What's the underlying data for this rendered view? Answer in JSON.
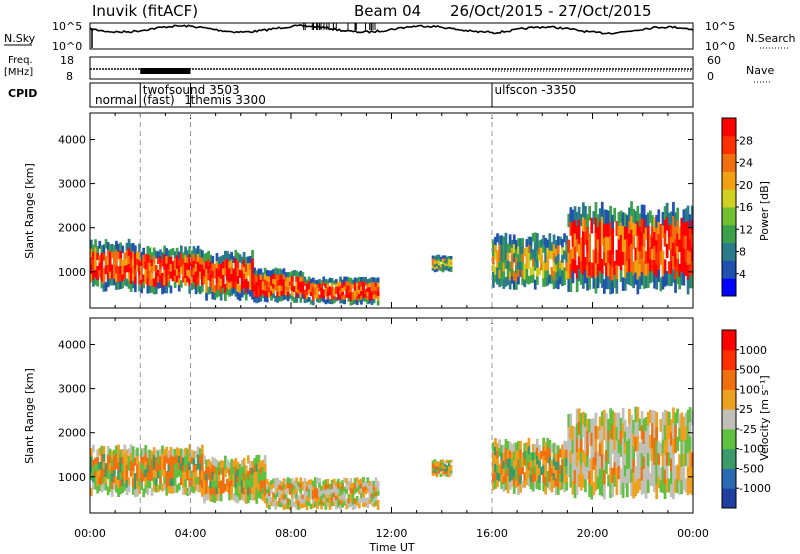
{
  "header": {
    "title": "Inuvik (fitACF)",
    "beam": "Beam 04",
    "dates": "26/Oct/2015 - 27/Oct/2015"
  },
  "top_panels": {
    "nsky_label": "N.Sky",
    "nsearch_label": "N.Search",
    "nsky_ticks": [
      "10^5",
      "10^0"
    ],
    "nsearch_ticks": [
      "10^5",
      "10^0"
    ],
    "freq_label": "Freq.",
    "freq_unit": "[MHz]",
    "freq_ticks": [
      "18",
      "8"
    ],
    "nave_label": "Nave",
    "nave_ticks": [
      "60",
      "0"
    ],
    "cpid_label": "CPID",
    "cpid_modes": [
      {
        "label": "normal",
        "x_hours": 0.2
      },
      {
        "label": "twofsound 3503",
        "x_hours": 2.1,
        "row": 0
      },
      {
        "label": "(fast)",
        "x_hours": 2.1,
        "row": 1
      },
      {
        "label": "1",
        "x_hours": 3.75,
        "row": 1
      },
      {
        "label": "themis 3300",
        "x_hours": 4.0,
        "row": 1
      },
      {
        "label": "ulfscon -3350",
        "x_hours": 16.1,
        "row": 0
      }
    ],
    "mode_change_hours": [
      2.0,
      4.0,
      16.0
    ]
  },
  "colorbars": {
    "power": {
      "label": "Power [dB]",
      "ticks": [
        "28",
        "24",
        "20",
        "16",
        "12",
        "8",
        "4"
      ],
      "colors": [
        "#0000ff",
        "#2050b0",
        "#2a7a8a",
        "#3aa04a",
        "#70c030",
        "#d0d020",
        "#f0a010",
        "#f07010",
        "#ff3000",
        "#ff0000"
      ]
    },
    "velocity": {
      "label": "Velocity [m s⁻¹]",
      "ticks": [
        "1000",
        "500",
        "100",
        "25",
        "-25",
        "-100",
        "-500",
        "-1000"
      ],
      "colors": [
        "#1f3fa0",
        "#2a6ab0",
        "#3a9a6a",
        "#60c040",
        "#c0c0b8",
        "#f0a020",
        "#f07010",
        "#ff3000",
        "#ff0000"
      ]
    }
  },
  "chart_data": [
    {
      "type": "heatmap",
      "name": "power",
      "ylabel": "Slant Range [km]",
      "xlabel": "Time UT",
      "x_ticks": [
        "00:00",
        "04:00",
        "08:00",
        "12:00",
        "16:00",
        "20:00",
        "00:00"
      ],
      "y_ticks": [
        1000,
        2000,
        3000,
        4000
      ],
      "xlim_hours": [
        0,
        24
      ],
      "ylim": [
        180,
        4600
      ],
      "regions": [
        {
          "t0": 0,
          "t1": 2.0,
          "r0": 550,
          "r1": 1750,
          "core": "red"
        },
        {
          "t0": 2.0,
          "t1": 4.5,
          "r0": 500,
          "r1": 1600,
          "core": "red"
        },
        {
          "t0": 4.5,
          "t1": 6.5,
          "r0": 350,
          "r1": 1500,
          "core": "red"
        },
        {
          "t0": 6.5,
          "t1": 8.5,
          "r0": 300,
          "r1": 1100,
          "core": "red"
        },
        {
          "t0": 8.5,
          "t1": 11.5,
          "r0": 250,
          "r1": 900,
          "core": "red"
        },
        {
          "t0": 13.6,
          "t1": 14.4,
          "r0": 1000,
          "r1": 1400,
          "core": "orange"
        },
        {
          "t0": 16.0,
          "t1": 19.0,
          "r0": 600,
          "r1": 1900,
          "core": "orange"
        },
        {
          "t0": 19.0,
          "t1": 24.0,
          "r0": 500,
          "r1": 2600,
          "core": "red"
        }
      ]
    },
    {
      "type": "heatmap",
      "name": "velocity",
      "ylabel": "Slant Range [km]",
      "xlabel": "Time UT",
      "x_ticks": [
        "00:00",
        "04:00",
        "08:00",
        "12:00",
        "16:00",
        "20:00",
        "00:00"
      ],
      "y_ticks": [
        1000,
        2000,
        3000,
        4000
      ],
      "xlim_hours": [
        0,
        24
      ],
      "ylim": [
        180,
        4600
      ],
      "regions": [
        {
          "t0": 0,
          "t1": 4.5,
          "r0": 550,
          "r1": 1750,
          "core": "orange"
        },
        {
          "t0": 4.5,
          "t1": 7.0,
          "r0": 400,
          "r1": 1500,
          "core": "orange"
        },
        {
          "t0": 7.0,
          "t1": 11.5,
          "r0": 250,
          "r1": 1000,
          "core": "gray"
        },
        {
          "t0": 13.6,
          "t1": 14.4,
          "r0": 1000,
          "r1": 1400,
          "core": "orange"
        },
        {
          "t0": 16.0,
          "t1": 19.0,
          "r0": 600,
          "r1": 1900,
          "core": "orange"
        },
        {
          "t0": 19.0,
          "t1": 24.0,
          "r0": 500,
          "r1": 2600,
          "core": "gray"
        }
      ]
    }
  ]
}
